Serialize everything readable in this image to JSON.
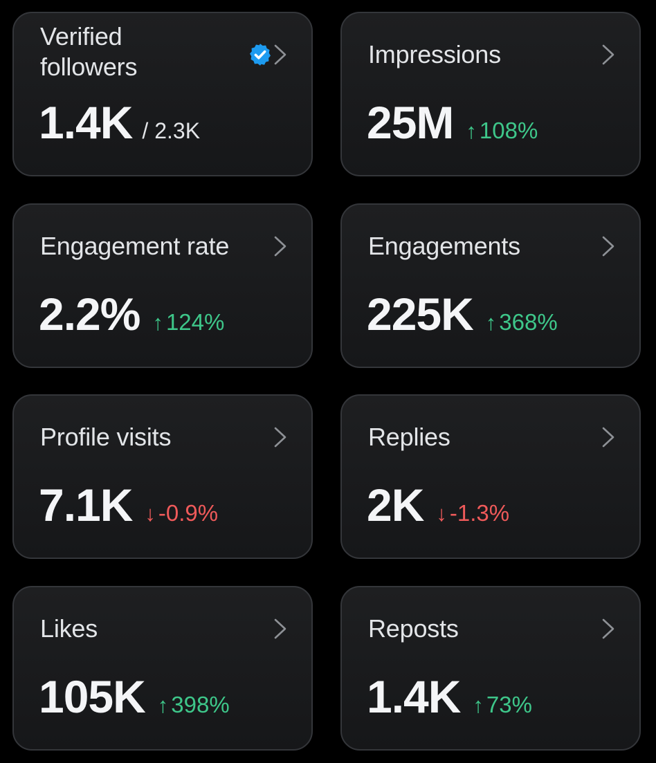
{
  "colors": {
    "background": "#000000",
    "card": "#1b1c1e",
    "card_border": "#34363a",
    "up": "#3ec78a",
    "down": "#ef5a5a",
    "verified_badge": "#1d9bf0"
  },
  "cards": [
    {
      "label_line1": "Verified",
      "label_line2": "followers",
      "value": "1.4K",
      "total": "/ 2.3K",
      "icon": "verified-badge-icon"
    },
    {
      "label": "Impressions",
      "value": "25M",
      "change_arrow": "↑",
      "change": "108%",
      "direction": "up"
    },
    {
      "label": "Engagement rate",
      "value": "2.2%",
      "change_arrow": "↑",
      "change": "124%",
      "direction": "up"
    },
    {
      "label": "Engagements",
      "value": "225K",
      "change_arrow": "↑",
      "change": "368%",
      "direction": "up"
    },
    {
      "label": "Profile visits",
      "value": "7.1K",
      "change_arrow": "↓",
      "change": "-0.9%",
      "direction": "down"
    },
    {
      "label": "Replies",
      "value": "2K",
      "change_arrow": "↓",
      "change": "-1.3%",
      "direction": "down"
    },
    {
      "label": "Likes",
      "value": "105K",
      "change_arrow": "↑",
      "change": "398%",
      "direction": "up"
    },
    {
      "label": "Reposts",
      "value": "1.4K",
      "change_arrow": "↑",
      "change": "73%",
      "direction": "up"
    }
  ]
}
